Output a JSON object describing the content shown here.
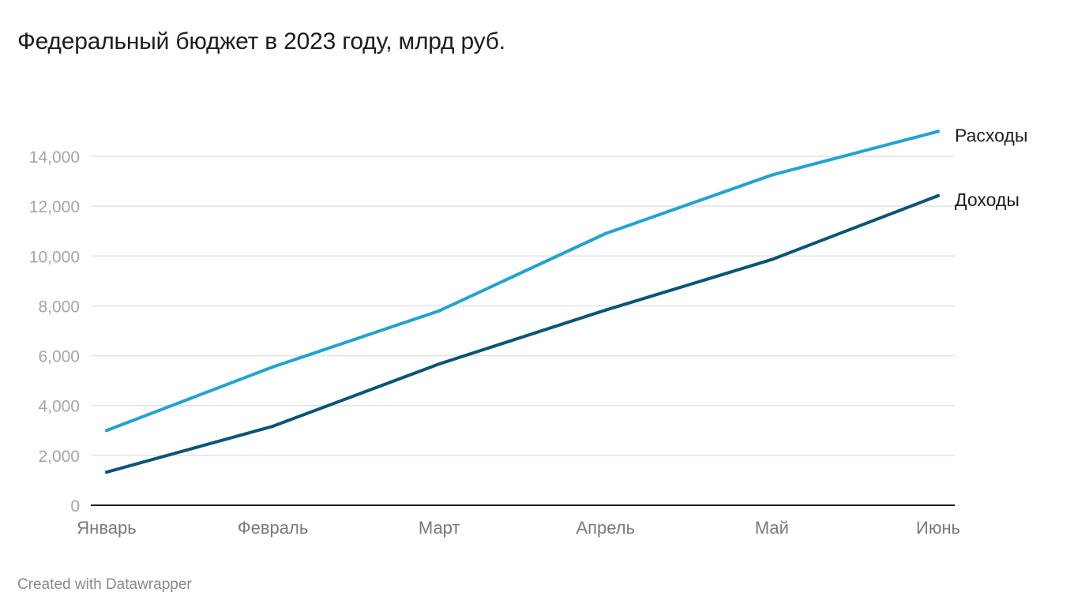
{
  "title": "Федеральный бюджет в 2023 году, млрд руб.",
  "footer": "Created with Datawrapper",
  "chart_data": {
    "type": "line",
    "title": "Федеральный бюджет в 2023 году, млрд руб.",
    "xlabel": "",
    "ylabel": "",
    "categories": [
      "Январь",
      "Февраль",
      "Март",
      "Апрель",
      "Май",
      "Июнь"
    ],
    "ylim": [
      0,
      14000
    ],
    "yticks": [
      0,
      2000,
      4000,
      6000,
      8000,
      10000,
      12000,
      14000
    ],
    "ytick_labels": [
      "0",
      "2,000",
      "4,000",
      "6,000",
      "8,000",
      "10,000",
      "12,000",
      "14,000"
    ],
    "grid": true,
    "legend": "inline-right",
    "series": [
      {
        "name": "Расходы",
        "color": "#23a3cf",
        "values": [
          3000,
          5550,
          7800,
          10900,
          13250,
          15000
        ]
      },
      {
        "name": "Доходы",
        "color": "#0b5577",
        "values": [
          1330,
          3170,
          5670,
          7830,
          9860,
          12420
        ]
      }
    ]
  }
}
